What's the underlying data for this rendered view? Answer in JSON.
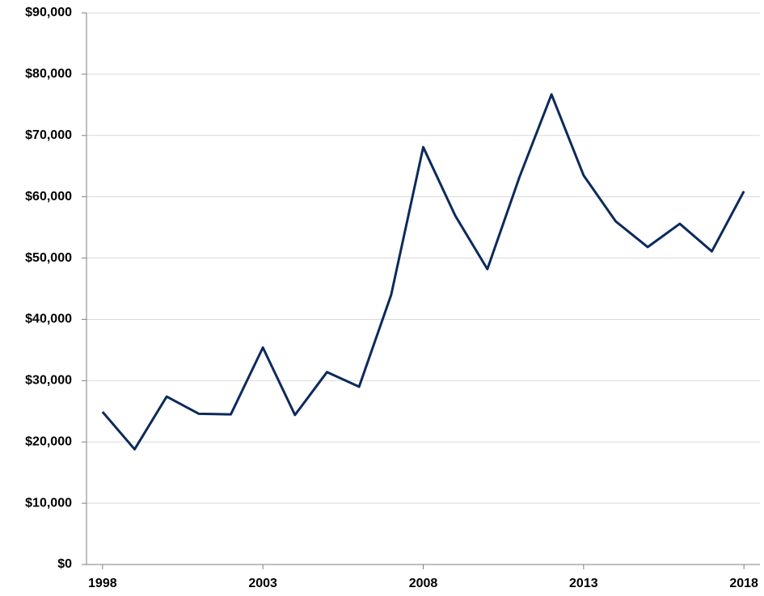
{
  "chart_data": {
    "type": "line",
    "x": [
      1998,
      1999,
      2000,
      2001,
      2002,
      2003,
      2004,
      2005,
      2006,
      2007,
      2008,
      2009,
      2010,
      2011,
      2012,
      2013,
      2014,
      2015,
      2016,
      2017,
      2018
    ],
    "series": [
      {
        "color": "#0c2a5b",
        "values": [
          24900,
          18800,
          27400,
          24600,
          24500,
          35400,
          24400,
          31400,
          29000,
          44000,
          68100,
          56900,
          48200,
          63200,
          76700,
          63500,
          56000,
          51800,
          55600,
          51100,
          60900
        ]
      }
    ],
    "xlim": [
      1997.5,
      2018.5
    ],
    "xticks": [
      1998,
      2003,
      2008,
      2013,
      2018
    ],
    "ylim": [
      0,
      90000
    ],
    "yticks": [
      {
        "value": 0,
        "label": "$0"
      },
      {
        "value": 10000,
        "label": "$10,000"
      },
      {
        "value": 20000,
        "label": "$20,000"
      },
      {
        "value": 30000,
        "label": "$30,000"
      },
      {
        "value": 40000,
        "label": "$40,000"
      },
      {
        "value": 50000,
        "label": "$50,000"
      },
      {
        "value": 60000,
        "label": "$60,000"
      },
      {
        "value": 70000,
        "label": "$70,000"
      },
      {
        "value": 80000,
        "label": "$80,000"
      },
      {
        "value": 90000,
        "label": "$90,000"
      }
    ],
    "grid": true
  }
}
